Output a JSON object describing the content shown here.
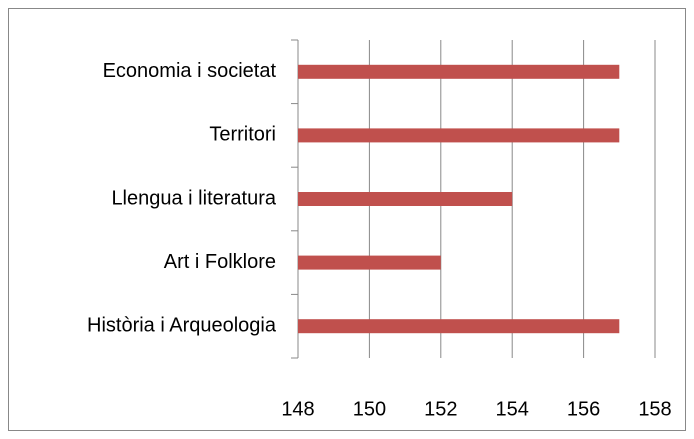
{
  "chart_data": {
    "type": "bar",
    "orientation": "horizontal",
    "categories": [
      "Economia i societat",
      "Territori",
      "Llengua i literatura",
      "Art i Folklore",
      "Història i Arqueologia"
    ],
    "values": [
      157,
      157,
      154,
      152,
      157
    ],
    "color": "#c0504d",
    "xlim": [
      148,
      158
    ],
    "xticks": [
      148,
      150,
      152,
      154,
      156,
      158
    ],
    "grid": true
  }
}
